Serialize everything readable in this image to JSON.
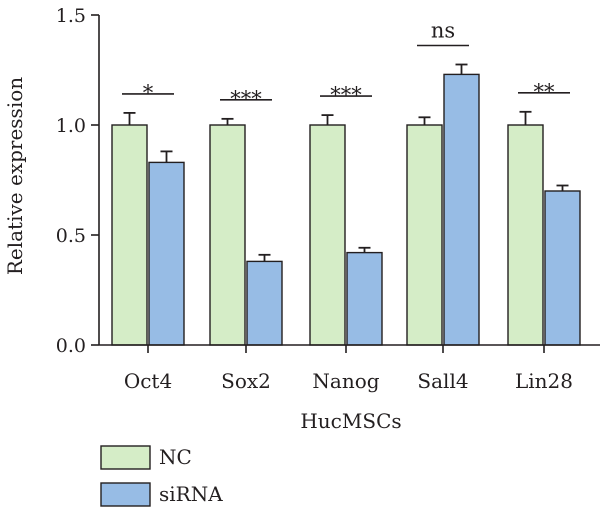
{
  "colors": {
    "nc_fill": "#d5edc7",
    "sirna_fill": "#97bce5",
    "stroke": "#231f20"
  },
  "chart_data": {
    "type": "bar",
    "title": "",
    "xlabel": "HucMSCs",
    "ylabel": "Relative expression",
    "ylim": [
      0,
      1.5
    ],
    "yticks": [
      "0.0",
      "0.5",
      "1.0",
      "1.5"
    ],
    "categories": [
      "Oct4",
      "Sox2",
      "Nanog",
      "Sall4",
      "Lin28"
    ],
    "series": [
      {
        "name": "NC",
        "values": [
          1.0,
          1.0,
          1.0,
          1.0,
          1.0
        ],
        "errors": [
          0.055,
          0.028,
          0.045,
          0.035,
          0.06
        ]
      },
      {
        "name": "siRNA",
        "values": [
          0.83,
          0.38,
          0.42,
          1.23,
          0.7
        ],
        "errors": [
          0.05,
          0.03,
          0.022,
          0.045,
          0.025
        ]
      }
    ],
    "significance": [
      "*",
      "***",
      "***",
      "ns",
      "**"
    ],
    "legend_position": "bottom-left",
    "grid": false
  }
}
